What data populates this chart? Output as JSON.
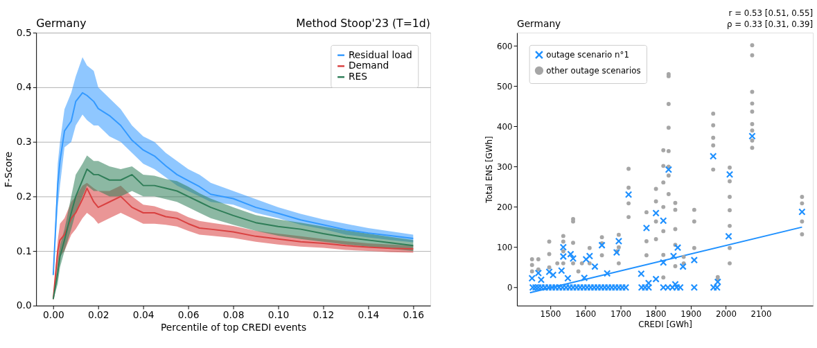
{
  "chart_data": [
    {
      "type": "line",
      "title": "Germany",
      "subtitle": "Method Stoop'23 (T=1d)",
      "xlabel": "Percentile of top CREDI events",
      "ylabel": "F-Score",
      "x": [
        0,
        0.002,
        0.003,
        0.005,
        0.008,
        0.01,
        0.013,
        0.015,
        0.018,
        0.02,
        0.025,
        0.03,
        0.035,
        0.04,
        0.045,
        0.05,
        0.055,
        0.06,
        0.065,
        0.07,
        0.08,
        0.09,
        0.1,
        0.11,
        0.12,
        0.13,
        0.14,
        0.15,
        0.16
      ],
      "series": [
        {
          "name": "Residual load",
          "color": "#3399ff",
          "values": [
            0.056,
            0.222,
            0.265,
            0.32,
            0.338,
            0.374,
            0.39,
            0.385,
            0.374,
            0.361,
            0.348,
            0.33,
            0.303,
            0.285,
            0.274,
            0.256,
            0.24,
            0.229,
            0.218,
            0.204,
            0.196,
            0.18,
            0.169,
            0.157,
            0.148,
            0.139,
            0.133,
            0.128,
            0.123
          ],
          "lower": [
            0.05,
            0.18,
            0.22,
            0.29,
            0.3,
            0.33,
            0.35,
            0.34,
            0.33,
            0.33,
            0.31,
            0.3,
            0.28,
            0.26,
            0.25,
            0.235,
            0.22,
            0.21,
            0.2,
            0.19,
            0.185,
            0.17,
            0.16,
            0.148,
            0.14,
            0.13,
            0.125,
            0.12,
            0.116
          ],
          "upper": [
            0.06,
            0.26,
            0.3,
            0.36,
            0.39,
            0.42,
            0.455,
            0.44,
            0.43,
            0.4,
            0.38,
            0.36,
            0.33,
            0.31,
            0.3,
            0.28,
            0.265,
            0.25,
            0.24,
            0.225,
            0.21,
            0.195,
            0.18,
            0.168,
            0.158,
            0.15,
            0.142,
            0.136,
            0.13
          ]
        },
        {
          "name": "Demand",
          "color": "#d94040",
          "values": [
            0.012,
            0.1,
            0.12,
            0.13,
            0.16,
            0.17,
            0.195,
            0.215,
            0.19,
            0.18,
            0.19,
            0.2,
            0.18,
            0.17,
            0.17,
            0.163,
            0.16,
            0.15,
            0.142,
            0.14,
            0.135,
            0.127,
            0.122,
            0.117,
            0.114,
            0.11,
            0.107,
            0.105,
            0.104
          ],
          "lower": [
            0.01,
            0.07,
            0.09,
            0.1,
            0.13,
            0.14,
            0.16,
            0.17,
            0.16,
            0.15,
            0.16,
            0.17,
            0.16,
            0.15,
            0.15,
            0.148,
            0.145,
            0.137,
            0.13,
            0.128,
            0.124,
            0.117,
            0.112,
            0.108,
            0.106,
            0.102,
            0.1,
            0.098,
            0.097
          ],
          "upper": [
            0.014,
            0.12,
            0.15,
            0.16,
            0.19,
            0.2,
            0.22,
            0.225,
            0.215,
            0.21,
            0.21,
            0.22,
            0.2,
            0.185,
            0.182,
            0.175,
            0.172,
            0.162,
            0.155,
            0.152,
            0.146,
            0.137,
            0.132,
            0.127,
            0.122,
            0.118,
            0.114,
            0.112,
            0.11
          ]
        },
        {
          "name": "RES",
          "color": "#2e7d57",
          "values": [
            0.012,
            0.06,
            0.09,
            0.12,
            0.17,
            0.2,
            0.23,
            0.25,
            0.24,
            0.24,
            0.23,
            0.23,
            0.24,
            0.22,
            0.22,
            0.215,
            0.21,
            0.2,
            0.19,
            0.18,
            0.165,
            0.152,
            0.145,
            0.14,
            0.132,
            0.125,
            0.12,
            0.115,
            0.11
          ],
          "lower": [
            0.01,
            0.04,
            0.07,
            0.1,
            0.14,
            0.17,
            0.2,
            0.22,
            0.21,
            0.21,
            0.2,
            0.2,
            0.21,
            0.2,
            0.2,
            0.195,
            0.19,
            0.18,
            0.17,
            0.16,
            0.148,
            0.137,
            0.128,
            0.122,
            0.117,
            0.112,
            0.108,
            0.104,
            0.1
          ],
          "upper": [
            0.014,
            0.08,
            0.11,
            0.14,
            0.2,
            0.24,
            0.26,
            0.275,
            0.265,
            0.265,
            0.255,
            0.25,
            0.255,
            0.24,
            0.238,
            0.232,
            0.228,
            0.218,
            0.206,
            0.196,
            0.18,
            0.166,
            0.158,
            0.152,
            0.145,
            0.138,
            0.132,
            0.126,
            0.12
          ]
        }
      ],
      "xlim": [
        -0.0076,
        0.1676
      ],
      "ylim": [
        0,
        0.5
      ],
      "xticks": [
        {
          "value": 0,
          "label": "0.00"
        },
        {
          "value": 0.02,
          "label": "0.02"
        },
        {
          "value": 0.04,
          "label": "0.04"
        },
        {
          "value": 0.06,
          "label": "0.06"
        },
        {
          "value": 0.08,
          "label": "0.08"
        },
        {
          "value": 0.1,
          "label": "0.10"
        },
        {
          "value": 0.12,
          "label": "0.12"
        },
        {
          "value": 0.14,
          "label": "0.14"
        },
        {
          "value": 0.16,
          "label": "0.16"
        }
      ],
      "yticks": [
        {
          "value": 0,
          "label": "0.0"
        },
        {
          "value": 0.1,
          "label": "0.1"
        },
        {
          "value": 0.2,
          "label": "0.2"
        },
        {
          "value": 0.3,
          "label": "0.3"
        },
        {
          "value": 0.4,
          "label": "0.4"
        },
        {
          "value": 0.5,
          "label": "0.5"
        }
      ],
      "grid": "y",
      "legend": "top right",
      "line_style": "solid",
      "marker": "none"
    },
    {
      "type": "scatter",
      "title": "Germany",
      "xlabel": "CREDI [GWh]",
      "ylabel": "Total ENS [GWh]",
      "annotations": [
        "r = 0.53 [0.51, 0.55]",
        "ρ = 0.33 [0.31, 0.39]"
      ],
      "series": [
        {
          "name": "outage scenario n°1",
          "color": "#1e90ff",
          "marker": "cross",
          "x": [
            1448,
            1466,
            1474,
            1497,
            1508,
            1532,
            1537,
            1537,
            1550,
            1558,
            1565,
            1602,
            1612,
            1627,
            1597,
            1647,
            1662,
            1689,
            1695,
            1723,
            1759,
            1774,
            1780,
            1801,
            1801,
            1822,
            1822,
            1837,
            1851,
            1863,
            1878,
            1856,
            1910,
            1964,
            2008,
            2011,
            1977,
            2075,
            2217,
            1450,
            1458,
            1466,
            1475,
            1485,
            1495,
            1505,
            1515,
            1525,
            1535,
            1545,
            1555,
            1565,
            1575,
            1585,
            1595,
            1605,
            1615,
            1625,
            1635,
            1645,
            1655,
            1665,
            1675,
            1685,
            1695,
            1705,
            1715,
            1760,
            1770,
            1780,
            1822,
            1835,
            1848,
            1860,
            1870,
            1910,
            1965,
            1975
          ],
          "values": [
            23,
            36,
            19,
            39,
            31,
            42,
            100,
            77,
            23,
            83,
            72,
            70,
            78,
            52,
            24,
            105,
            35,
            87,
            115,
            231,
            34,
            148,
            11,
            185,
            21,
            166,
            62,
            293,
            78,
            99,
            52,
            8,
            68,
            326,
            127,
            281,
            14,
            376,
            188,
            0,
            0,
            0,
            0,
            0,
            0,
            0,
            0,
            0,
            0,
            0,
            0,
            0,
            0,
            0,
            0,
            0,
            0,
            0,
            0,
            0,
            0,
            0,
            0,
            0,
            0,
            0,
            0,
            0,
            0,
            0,
            0,
            0,
            0,
            0,
            0,
            0,
            0,
            0
          ]
        },
        {
          "name": "other outage scenarios",
          "color": "#a6a6a6",
          "marker": "circle",
          "x": [
            2075,
            2075,
            2075,
            2075,
            2075,
            2075,
            2075,
            2075,
            2075,
            1837,
            1837,
            1837,
            1837,
            1837,
            1837,
            1837,
            1837,
            1964,
            1964,
            1964,
            1964,
            1964,
            2011,
            2011,
            2011,
            2011,
            2011,
            2011,
            2011,
            2217,
            2217,
            2217,
            2217,
            1723,
            1723,
            1723,
            1723,
            1822,
            1822,
            1822,
            1822,
            1822,
            1822,
            1822,
            1801,
            1801,
            1801,
            1801,
            1774,
            1774,
            1774,
            1856,
            1856,
            1856,
            1856,
            1856,
            1910,
            1910,
            1910,
            1565,
            1565,
            1565,
            1565,
            1537,
            1537,
            1537,
            1537,
            1497,
            1497,
            1497,
            1448,
            1448,
            1448,
            1466,
            1466,
            1612,
            1612,
            1647,
            1647,
            1647,
            1695,
            1695,
            1695,
            1977,
            1977,
            1880,
            1880,
            1690,
            1590,
            1520,
            1580
          ],
          "values": [
            602,
            577,
            486,
            457,
            437,
            406,
            390,
            365,
            347,
            530,
            525,
            456,
            397,
            339,
            300,
            278,
            232,
            432,
            403,
            372,
            353,
            293,
            298,
            264,
            225,
            192,
            153,
            98,
            60,
            225,
            209,
            164,
            132,
            295,
            248,
            209,
            175,
            341,
            302,
            261,
            200,
            140,
            81,
            25,
            245,
            214,
            164,
            120,
            187,
            115,
            80,
            210,
            193,
            145,
            106,
            53,
            193,
            164,
            98,
            170,
            164,
            111,
            60,
            128,
            114,
            90,
            60,
            114,
            83,
            50,
            70,
            56,
            40,
            70,
            45,
            98,
            60,
            125,
            110,
            80,
            131,
            100,
            60,
            26,
            20,
            76,
            60,
            90,
            60,
            60,
            40
          ]
        },
        {
          "type": "line",
          "color": "#1e90ff",
          "x": [
            1442,
            2217
          ],
          "values": [
            -13,
            150
          ]
        }
      ],
      "xlim": [
        1405,
        2248
      ],
      "ylim": [
        -45,
        633
      ],
      "xticks": [
        1500,
        1600,
        1700,
        1800,
        1900,
        2000,
        2100
      ],
      "yticks": [
        0,
        100,
        200,
        300,
        400,
        500,
        600
      ],
      "legend": "top left"
    }
  ]
}
